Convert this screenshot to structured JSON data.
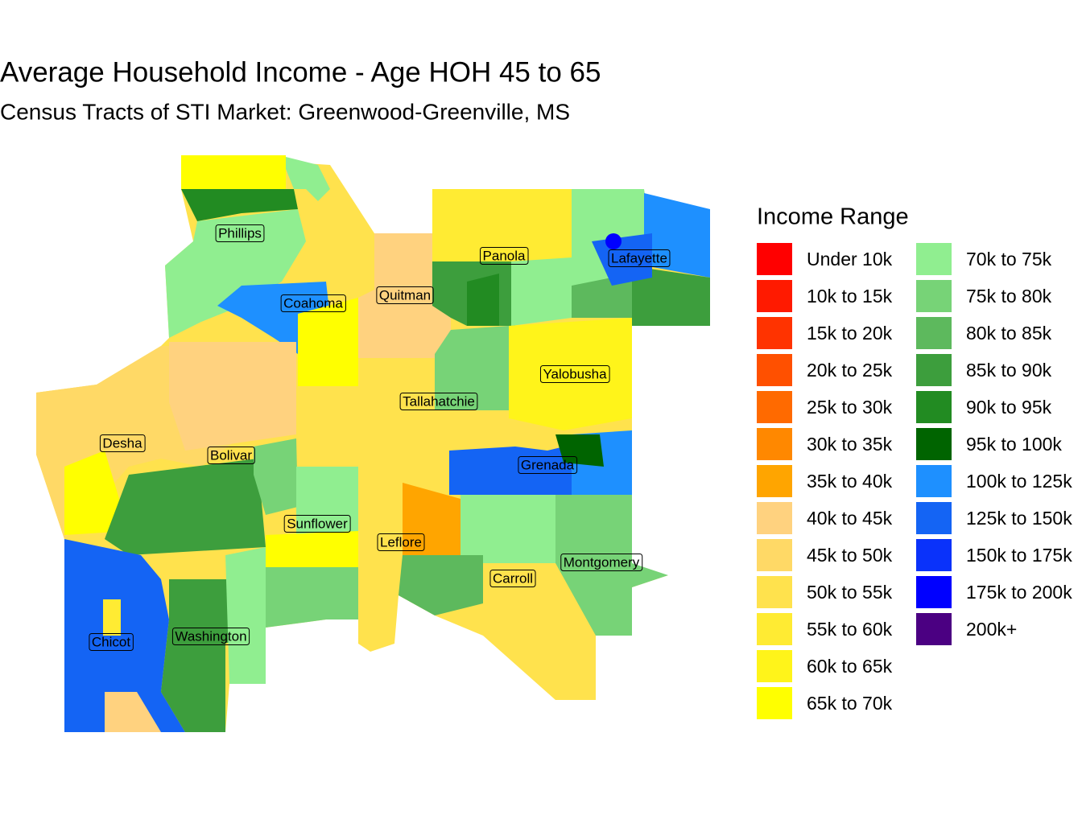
{
  "header": {
    "title": "Average Household Income - Age HOH 45 to 65",
    "subtitle": "Census Tracts of STI Market: Greenwood-Greenville, MS"
  },
  "legend": {
    "title": "Income Range",
    "items": [
      {
        "label": "Under 10k",
        "color": "#FF0000"
      },
      {
        "label": "10k to 15k",
        "color": "#FF1A00"
      },
      {
        "label": "15k to 20k",
        "color": "#FF3300"
      },
      {
        "label": "20k to 25k",
        "color": "#FF5000"
      },
      {
        "label": "25k to 30k",
        "color": "#FF6A00"
      },
      {
        "label": "30k to 35k",
        "color": "#FF8800"
      },
      {
        "label": "35k to 40k",
        "color": "#FFA500"
      },
      {
        "label": "40k to 45k",
        "color": "#FFD27F"
      },
      {
        "label": "45k to 50k",
        "color": "#FFD966"
      },
      {
        "label": "50k to 55k",
        "color": "#FFE24D"
      },
      {
        "label": "55k to 60k",
        "color": "#FFEB33"
      },
      {
        "label": "60k to 65k",
        "color": "#FFF41A"
      },
      {
        "label": "65k to 70k",
        "color": "#FFFF00"
      },
      {
        "label": "70k to 75k",
        "color": "#90EE90"
      },
      {
        "label": "75k to 80k",
        "color": "#77D377"
      },
      {
        "label": "80k to 85k",
        "color": "#5DB95D"
      },
      {
        "label": "85k to 90k",
        "color": "#3D9E3D"
      },
      {
        "label": "90k to 95k",
        "color": "#228B22"
      },
      {
        "label": "95k to 100k",
        "color": "#006400"
      },
      {
        "label": "100k to 125k",
        "color": "#1E90FF"
      },
      {
        "label": "125k to 150k",
        "color": "#1464F4"
      },
      {
        "label": "150k to 175k",
        "color": "#0A32FA"
      },
      {
        "label": "175k to 200k",
        "color": "#0000FF"
      },
      {
        "label": "200k+",
        "color": "#4B0082"
      }
    ]
  },
  "counties": [
    "Phillips",
    "Coahoma",
    "Quitman",
    "Panola",
    "Lafayette",
    "Yalobusha",
    "Tallahatchie",
    "Desha",
    "Bolivar",
    "Grenada",
    "Sunflower",
    "Leflore",
    "Montgomery",
    "Carroll",
    "Chicot",
    "Washington"
  ]
}
